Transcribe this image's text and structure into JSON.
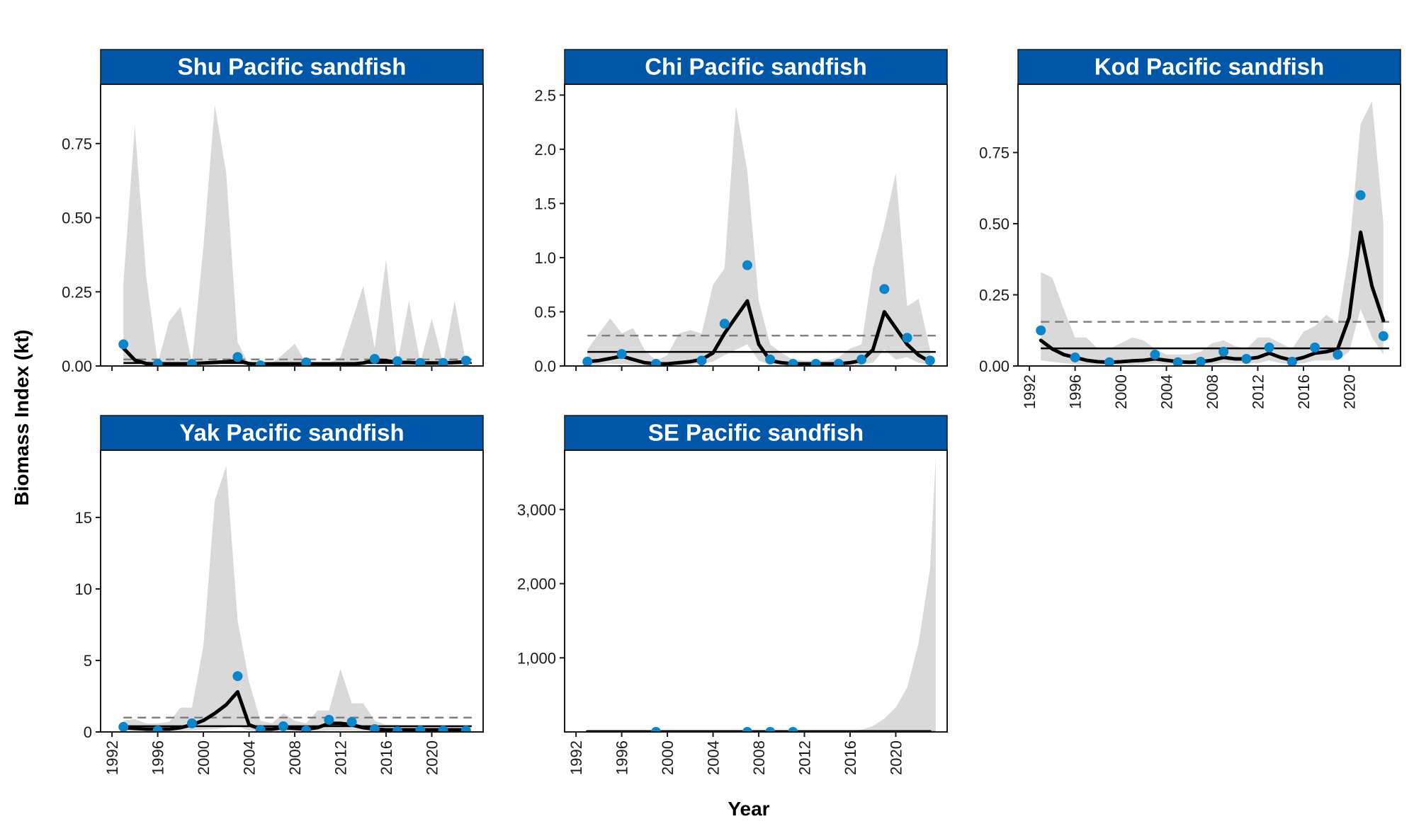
{
  "figure": {
    "ylabel": "Biomass Index (kt)",
    "xlabel": "Year"
  },
  "colors": {
    "strip_bg": "#0057A8",
    "strip_text": "#FFFFFF",
    "ribbon": "#D9D9D9",
    "fit_line": "#000000",
    "points": "#0B84C8",
    "mean_line": "#000000",
    "dashed_line": "#808080"
  },
  "chart_data": [
    {
      "type": "line",
      "title": "Shu Pacific sandfish",
      "xlim": [
        1991,
        2024.5
      ],
      "ylim": [
        0,
        0.95
      ],
      "x_ticks": [
        1992,
        1996,
        2000,
        2004,
        2008,
        2012,
        2016,
        2020
      ],
      "x_tick_labels": [
        "1992",
        "1996",
        "2000",
        "2004",
        "2008",
        "2012",
        "2016",
        "2020"
      ],
      "show_x_tick_labels": false,
      "y_ticks": [
        0,
        0.25,
        0.5,
        0.75
      ],
      "y_tick_labels": [
        "0.00",
        "0.25",
        "0.50",
        "0.75"
      ],
      "mean_line": 0.01,
      "dashed_line": 0.022,
      "fit": {
        "x": [
          1993,
          1994,
          1995,
          1996,
          1997,
          1998,
          1999,
          2000,
          2001,
          2002,
          2003,
          2004,
          2005,
          2006,
          2007,
          2008,
          2009,
          2010,
          2011,
          2012,
          2013,
          2014,
          2015,
          2016,
          2017,
          2018,
          2019,
          2020,
          2021,
          2022,
          2023
        ],
        "y": [
          0.06,
          0.02,
          0.008,
          0.006,
          0.006,
          0.007,
          0.008,
          0.01,
          0.012,
          0.014,
          0.018,
          0.008,
          0.005,
          0.005,
          0.005,
          0.005,
          0.006,
          0.006,
          0.005,
          0.005,
          0.006,
          0.01,
          0.02,
          0.018,
          0.012,
          0.012,
          0.01,
          0.01,
          0.01,
          0.012,
          0.014
        ]
      },
      "ribbon": {
        "x": [
          1993,
          1994,
          1995,
          1996,
          1997,
          1998,
          1999,
          2000,
          2001,
          2002,
          2003,
          2004,
          2005,
          2006,
          2007,
          2008,
          2009,
          2010,
          2011,
          2012,
          2013,
          2014,
          2015,
          2016,
          2017,
          2018,
          2019,
          2020,
          2021,
          2022,
          2023
        ],
        "upper": [
          0.28,
          0.81,
          0.3,
          0.01,
          0.15,
          0.2,
          0.01,
          0.4,
          0.88,
          0.65,
          0.08,
          0.005,
          0.005,
          0.01,
          0.04,
          0.075,
          0.01,
          0.01,
          0.01,
          0.03,
          0.15,
          0.27,
          0.06,
          0.36,
          0.01,
          0.22,
          0.01,
          0.16,
          0.01,
          0.22,
          0.01
        ],
        "lower": [
          0.002,
          0.001,
          0.001,
          0.001,
          0.001,
          0.001,
          0.001,
          0.001,
          0.001,
          0.001,
          0.001,
          0.001,
          0.001,
          0.001,
          0.001,
          0.001,
          0.001,
          0.001,
          0.001,
          0.001,
          0.001,
          0.001,
          0.001,
          0.001,
          0.001,
          0.001,
          0.001,
          0.001,
          0.001,
          0.001,
          0.001
        ]
      },
      "points": {
        "x": [
          1993,
          1996,
          1999,
          2003,
          2005,
          2009,
          2015,
          2017,
          2019,
          2021,
          2023
        ],
        "y": [
          0.073,
          0.007,
          0.007,
          0.03,
          0.002,
          0.012,
          0.024,
          0.016,
          0.01,
          0.01,
          0.018
        ]
      }
    },
    {
      "type": "line",
      "title": "Chi Pacific sandfish",
      "xlim": [
        1991,
        2024.5
      ],
      "ylim": [
        0,
        2.6
      ],
      "x_ticks": [
        1992,
        1996,
        2000,
        2004,
        2008,
        2012,
        2016,
        2020
      ],
      "x_tick_labels": [
        "1992",
        "1996",
        "2000",
        "2004",
        "2008",
        "2012",
        "2016",
        "2020"
      ],
      "show_x_tick_labels": false,
      "y_ticks": [
        0,
        0.5,
        1.0,
        1.5,
        2.0,
        2.5
      ],
      "y_tick_labels": [
        "0.0",
        "0.5",
        "1.0",
        "1.5",
        "2.0",
        "2.5"
      ],
      "mean_line": 0.13,
      "dashed_line": 0.28,
      "fit": {
        "x": [
          1993,
          1994,
          1995,
          1996,
          1997,
          1998,
          1999,
          2000,
          2001,
          2002,
          2003,
          2004,
          2005,
          2006,
          2007,
          2008,
          2009,
          2010,
          2011,
          2012,
          2013,
          2014,
          2015,
          2016,
          2017,
          2018,
          2019,
          2020,
          2021,
          2022,
          2023
        ],
        "y": [
          0.04,
          0.05,
          0.07,
          0.09,
          0.06,
          0.03,
          0.02,
          0.02,
          0.03,
          0.04,
          0.06,
          0.12,
          0.3,
          0.45,
          0.6,
          0.2,
          0.05,
          0.03,
          0.02,
          0.02,
          0.02,
          0.02,
          0.02,
          0.03,
          0.05,
          0.15,
          0.5,
          0.35,
          0.2,
          0.1,
          0.04
        ]
      },
      "ribbon": {
        "x": [
          1993,
          1994,
          1995,
          1996,
          1997,
          1998,
          1999,
          2000,
          2001,
          2002,
          2003,
          2004,
          2005,
          2006,
          2007,
          2008,
          2009,
          2010,
          2011,
          2012,
          2013,
          2014,
          2015,
          2016,
          2017,
          2018,
          2019,
          2020,
          2021,
          2022,
          2023
        ],
        "upper": [
          0.15,
          0.3,
          0.44,
          0.3,
          0.35,
          0.15,
          0.05,
          0.1,
          0.3,
          0.33,
          0.3,
          0.75,
          0.9,
          2.4,
          1.8,
          0.6,
          0.2,
          0.12,
          0.06,
          0.05,
          0.05,
          0.05,
          0.08,
          0.16,
          0.2,
          0.9,
          1.3,
          1.78,
          0.55,
          0.62,
          0.15
        ],
        "lower": [
          0.005,
          0.01,
          0.02,
          0.02,
          0.01,
          0.005,
          0.003,
          0.003,
          0.005,
          0.01,
          0.02,
          0.04,
          0.1,
          0.15,
          0.2,
          0.05,
          0.01,
          0.005,
          0.005,
          0.003,
          0.003,
          0.003,
          0.003,
          0.005,
          0.01,
          0.03,
          0.15,
          0.06,
          0.08,
          0.03,
          0.005
        ]
      },
      "points": {
        "x": [
          1993,
          1996,
          1999,
          2003,
          2005,
          2007,
          2009,
          2011,
          2013,
          2015,
          2017,
          2019,
          2021,
          2023
        ],
        "y": [
          0.04,
          0.11,
          0.02,
          0.05,
          0.39,
          0.93,
          0.06,
          0.02,
          0.02,
          0.02,
          0.06,
          0.71,
          0.26,
          0.05
        ]
      }
    },
    {
      "type": "line",
      "title": "Kod Pacific sandfish",
      "xlim": [
        1991,
        2024.5
      ],
      "ylim": [
        0,
        0.99
      ],
      "x_ticks": [
        1992,
        1996,
        2000,
        2004,
        2008,
        2012,
        2016,
        2020
      ],
      "x_tick_labels": [
        "1992",
        "1996",
        "2000",
        "2004",
        "2008",
        "2012",
        "2016",
        "2020"
      ],
      "show_x_tick_labels": true,
      "y_ticks": [
        0,
        0.25,
        0.5,
        0.75
      ],
      "y_tick_labels": [
        "0.00",
        "0.25",
        "0.50",
        "0.75"
      ],
      "mean_line": 0.062,
      "dashed_line": 0.155,
      "fit": {
        "x": [
          1993,
          1994,
          1995,
          1996,
          1997,
          1998,
          1999,
          2000,
          2001,
          2002,
          2003,
          2004,
          2005,
          2006,
          2007,
          2008,
          2009,
          2010,
          2011,
          2012,
          2013,
          2014,
          2015,
          2016,
          2017,
          2018,
          2019,
          2020,
          2021,
          2022,
          2023
        ],
        "y": [
          0.09,
          0.06,
          0.04,
          0.03,
          0.02,
          0.015,
          0.013,
          0.015,
          0.018,
          0.02,
          0.025,
          0.02,
          0.015,
          0.013,
          0.015,
          0.02,
          0.03,
          0.025,
          0.025,
          0.03,
          0.045,
          0.03,
          0.02,
          0.03,
          0.045,
          0.05,
          0.06,
          0.17,
          0.47,
          0.28,
          0.16
        ]
      },
      "ribbon": {
        "x": [
          1993,
          1994,
          1995,
          1996,
          1997,
          1998,
          1999,
          2000,
          2001,
          2002,
          2003,
          2004,
          2005,
          2006,
          2007,
          2008,
          2009,
          2010,
          2011,
          2012,
          2013,
          2014,
          2015,
          2016,
          2017,
          2018,
          2019,
          2020,
          2021,
          2022,
          2023
        ],
        "upper": [
          0.33,
          0.31,
          0.2,
          0.1,
          0.1,
          0.06,
          0.06,
          0.08,
          0.1,
          0.09,
          0.06,
          0.04,
          0.04,
          0.04,
          0.05,
          0.08,
          0.09,
          0.07,
          0.06,
          0.1,
          0.1,
          0.08,
          0.06,
          0.12,
          0.14,
          0.18,
          0.15,
          0.4,
          0.85,
          0.93,
          0.5
        ],
        "lower": [
          0.02,
          0.015,
          0.01,
          0.005,
          0.004,
          0.003,
          0.003,
          0.003,
          0.004,
          0.005,
          0.008,
          0.005,
          0.004,
          0.003,
          0.004,
          0.005,
          0.01,
          0.008,
          0.008,
          0.01,
          0.02,
          0.01,
          0.005,
          0.01,
          0.02,
          0.02,
          0.02,
          0.05,
          0.2,
          0.1,
          0.04
        ]
      },
      "points": {
        "x": [
          1993,
          1996,
          1999,
          2003,
          2005,
          2007,
          2009,
          2011,
          2013,
          2015,
          2017,
          2019,
          2021,
          2023
        ],
        "y": [
          0.125,
          0.03,
          0.013,
          0.04,
          0.013,
          0.015,
          0.05,
          0.025,
          0.065,
          0.015,
          0.065,
          0.04,
          0.6,
          0.105
        ]
      }
    },
    {
      "type": "line",
      "title": "Yak Pacific sandfish",
      "xlim": [
        1991,
        2024.5
      ],
      "ylim": [
        0,
        19.7
      ],
      "x_ticks": [
        1992,
        1996,
        2000,
        2004,
        2008,
        2012,
        2016,
        2020
      ],
      "x_tick_labels": [
        "1992",
        "1996",
        "2000",
        "2004",
        "2008",
        "2012",
        "2016",
        "2020"
      ],
      "show_x_tick_labels": true,
      "y_ticks": [
        0,
        5,
        10,
        15
      ],
      "y_tick_labels": [
        "0",
        "5",
        "10",
        "15"
      ],
      "mean_line": 0.4,
      "dashed_line": 1.0,
      "fit": {
        "x": [
          1993,
          1994,
          1995,
          1996,
          1997,
          1998,
          1999,
          2000,
          2001,
          2002,
          2003,
          2004,
          2005,
          2006,
          2007,
          2008,
          2009,
          2010,
          2011,
          2012,
          2013,
          2014,
          2015,
          2016,
          2017,
          2018,
          2019,
          2020,
          2021,
          2022,
          2023
        ],
        "y": [
          0.3,
          0.25,
          0.2,
          0.2,
          0.2,
          0.3,
          0.5,
          0.8,
          1.3,
          1.9,
          2.8,
          0.5,
          0.2,
          0.2,
          0.3,
          0.25,
          0.2,
          0.3,
          0.6,
          0.6,
          0.5,
          0.3,
          0.2,
          0.15,
          0.15,
          0.15,
          0.15,
          0.15,
          0.15,
          0.15,
          0.15
        ]
      },
      "ribbon": {
        "x": [
          1993,
          1994,
          1995,
          1996,
          1997,
          1998,
          1999,
          2000,
          2001,
          2002,
          2003,
          2004,
          2005,
          2006,
          2007,
          2008,
          2009,
          2010,
          2011,
          2012,
          2013,
          2014,
          2015,
          2016,
          2017,
          2018,
          2019,
          2020,
          2021,
          2022,
          2023
        ],
        "upper": [
          0.8,
          0.9,
          0.6,
          0.6,
          0.7,
          1.7,
          1.7,
          6.0,
          16.2,
          18.6,
          7.8,
          3.5,
          0.8,
          0.6,
          1.3,
          0.8,
          0.6,
          1.5,
          1.5,
          4.4,
          2.0,
          2.0,
          0.8,
          0.5,
          0.5,
          0.4,
          0.4,
          0.4,
          0.4,
          0.4,
          0.4
        ],
        "lower": [
          0.05,
          0.05,
          0.04,
          0.04,
          0.04,
          0.05,
          0.1,
          0.15,
          0.2,
          0.3,
          0.4,
          0.1,
          0.04,
          0.04,
          0.05,
          0.05,
          0.04,
          0.05,
          0.1,
          0.1,
          0.08,
          0.05,
          0.04,
          0.03,
          0.03,
          0.03,
          0.03,
          0.03,
          0.03,
          0.03,
          0.03
        ]
      },
      "points": {
        "x": [
          1993,
          1996,
          1999,
          2003,
          2005,
          2007,
          2009,
          2011,
          2013,
          2015,
          2017,
          2019,
          2021,
          2023
        ],
        "y": [
          0.35,
          0.1,
          0.6,
          3.9,
          0.15,
          0.4,
          0.1,
          0.85,
          0.7,
          0.2,
          0.05,
          0.1,
          0.1,
          0.1
        ]
      }
    },
    {
      "type": "line",
      "title": "SE Pacific sandfish",
      "xlim": [
        1991,
        2024.5
      ],
      "ylim": [
        0,
        3800
      ],
      "x_ticks": [
        1992,
        1996,
        2000,
        2004,
        2008,
        2012,
        2016,
        2020
      ],
      "x_tick_labels": [
        "1992",
        "1996",
        "2000",
        "2004",
        "2008",
        "2012",
        "2016",
        "2020"
      ],
      "show_x_tick_labels": true,
      "y_ticks": [
        1000,
        2000,
        3000
      ],
      "y_tick_labels": [
        "1,000",
        "2,000",
        "3,000"
      ],
      "mean_line": 0.5,
      "dashed_line": null,
      "fit": {
        "x": [
          1993,
          1995,
          1997,
          1999,
          2001,
          2003,
          2005,
          2007,
          2009,
          2011,
          2013,
          2015,
          2017,
          2019,
          2021,
          2023
        ],
        "y": [
          0.5,
          0.5,
          0.5,
          0.5,
          0.5,
          0.5,
          0.5,
          0.5,
          0.5,
          0.5,
          0.5,
          0.5,
          0.5,
          0.5,
          0.5,
          0.5
        ]
      },
      "ribbon": {
        "x": [
          1993,
          2014,
          2015,
          2016,
          2017,
          2018,
          2019,
          2020,
          2021,
          2022,
          2023
        ],
        "upper": [
          0.5,
          2,
          5,
          12,
          30,
          80,
          180,
          330,
          600,
          1200,
          2200
        ],
        "lower": [
          0.1,
          0.1,
          0.1,
          0.1,
          0.1,
          0.1,
          0.1,
          0.1,
          0.1,
          0.1,
          0.1
        ]
      },
      "ribbon_tail": {
        "x": 2023.5,
        "upper": 3700
      },
      "points": {
        "x": [
          1999,
          2007,
          2009,
          2011
        ],
        "y": [
          0.4,
          0.3,
          0.3,
          0.3
        ]
      }
    }
  ]
}
